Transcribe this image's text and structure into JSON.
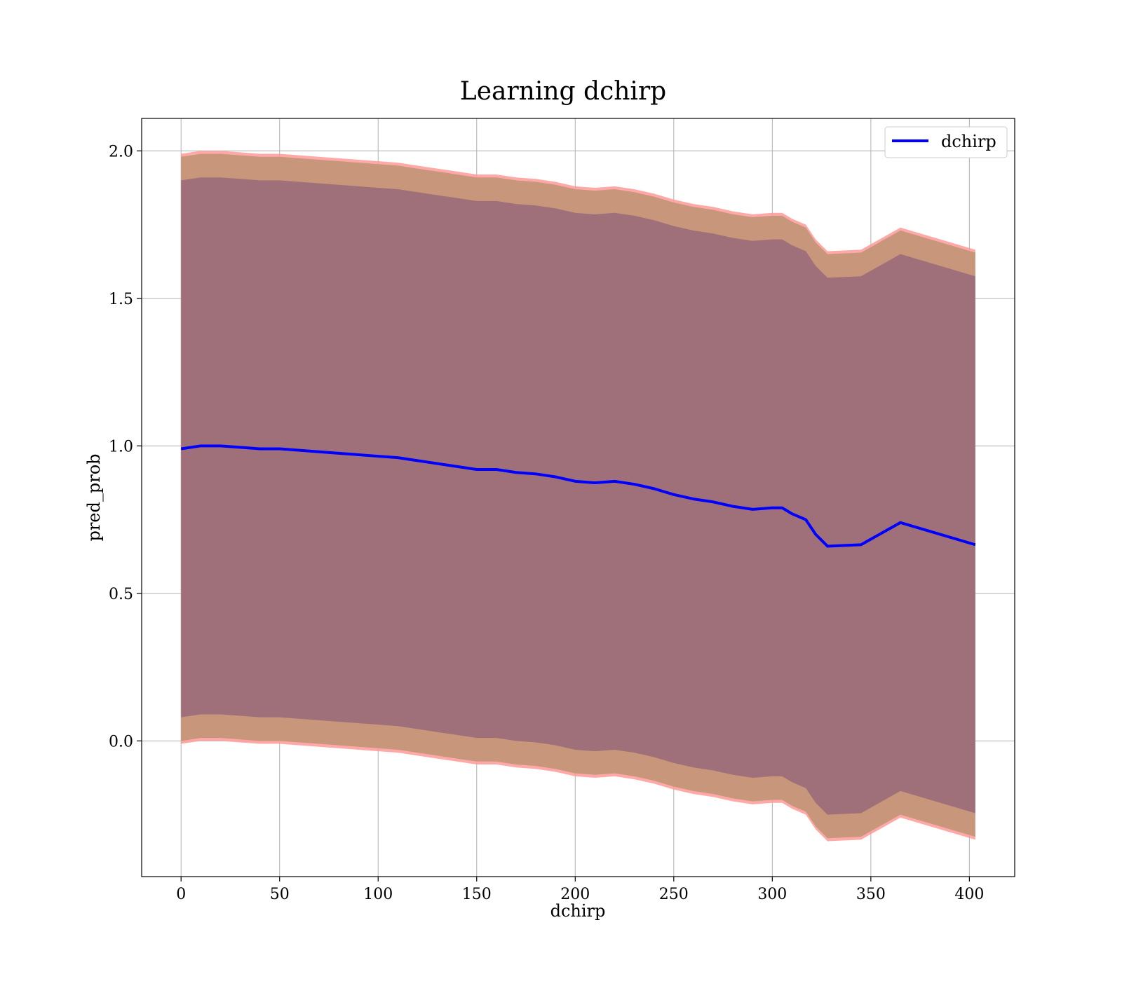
{
  "chart_data": {
    "type": "line",
    "title": "Learning dchirp",
    "xlabel": "dchirp",
    "ylabel": "pred_prob",
    "xlim": [
      -20,
      423
    ],
    "ylim": [
      -0.46,
      2.11
    ],
    "xticks": [
      0,
      50,
      100,
      150,
      200,
      250,
      300,
      350,
      400
    ],
    "xtick_labels": [
      "0",
      "50",
      "100",
      "150",
      "200",
      "250",
      "300",
      "350",
      "400"
    ],
    "yticks": [
      0.0,
      0.5,
      1.0,
      1.5,
      2.0
    ],
    "ytick_labels": [
      "0.0",
      "0.5",
      "1.0",
      "1.5",
      "2.0"
    ],
    "grid": true,
    "legend": {
      "position": "top-right",
      "entries": [
        "dchirp"
      ]
    },
    "colors": {
      "line": "#0000ff",
      "outer_band": "#ff9999",
      "mid_band": "#c8967a",
      "inner_band": "#a0707a"
    },
    "x": [
      0,
      10,
      20,
      30,
      40,
      50,
      60,
      70,
      80,
      90,
      100,
      110,
      120,
      130,
      140,
      150,
      160,
      170,
      180,
      190,
      200,
      210,
      220,
      230,
      240,
      250,
      260,
      270,
      280,
      290,
      300,
      305,
      310,
      317,
      322,
      328,
      345,
      365,
      403
    ],
    "series": [
      {
        "name": "dchirp",
        "values": [
          0.99,
          1.0,
          1.0,
          0.995,
          0.99,
          0.99,
          0.985,
          0.98,
          0.975,
          0.97,
          0.965,
          0.96,
          0.95,
          0.94,
          0.93,
          0.92,
          0.92,
          0.91,
          0.905,
          0.895,
          0.88,
          0.875,
          0.88,
          0.87,
          0.855,
          0.835,
          0.82,
          0.81,
          0.795,
          0.785,
          0.79,
          0.79,
          0.77,
          0.75,
          0.7,
          0.66,
          0.665,
          0.74,
          0.665
        ]
      }
    ],
    "bands": [
      {
        "upper": [
          1.99,
          2.0,
          2.0,
          1.995,
          1.99,
          1.99,
          1.985,
          1.98,
          1.975,
          1.97,
          1.965,
          1.96,
          1.95,
          1.94,
          1.93,
          1.92,
          1.92,
          1.91,
          1.905,
          1.895,
          1.88,
          1.875,
          1.88,
          1.87,
          1.855,
          1.835,
          1.82,
          1.81,
          1.795,
          1.785,
          1.79,
          1.79,
          1.77,
          1.75,
          1.7,
          1.66,
          1.665,
          1.74,
          1.665
        ],
        "lower": [
          -0.01,
          0.0,
          0.0,
          -0.005,
          -0.01,
          -0.01,
          -0.015,
          -0.02,
          -0.025,
          -0.03,
          -0.035,
          -0.04,
          -0.05,
          -0.06,
          -0.07,
          -0.08,
          -0.08,
          -0.09,
          -0.095,
          -0.105,
          -0.12,
          -0.125,
          -0.12,
          -0.13,
          -0.145,
          -0.165,
          -0.18,
          -0.19,
          -0.205,
          -0.215,
          -0.21,
          -0.21,
          -0.23,
          -0.25,
          -0.3,
          -0.34,
          -0.335,
          -0.26,
          -0.335
        ]
      },
      {
        "upper": [
          1.98,
          1.99,
          1.99,
          1.985,
          1.98,
          1.98,
          1.975,
          1.97,
          1.965,
          1.96,
          1.955,
          1.95,
          1.94,
          1.93,
          1.92,
          1.91,
          1.91,
          1.9,
          1.895,
          1.885,
          1.87,
          1.865,
          1.87,
          1.86,
          1.845,
          1.825,
          1.81,
          1.8,
          1.785,
          1.775,
          1.78,
          1.78,
          1.76,
          1.74,
          1.69,
          1.65,
          1.655,
          1.73,
          1.655
        ],
        "lower": [
          0.0,
          0.01,
          0.01,
          0.005,
          0.0,
          0.0,
          -0.005,
          -0.01,
          -0.015,
          -0.02,
          -0.025,
          -0.03,
          -0.04,
          -0.05,
          -0.06,
          -0.07,
          -0.07,
          -0.08,
          -0.085,
          -0.095,
          -0.11,
          -0.115,
          -0.11,
          -0.12,
          -0.135,
          -0.155,
          -0.17,
          -0.18,
          -0.195,
          -0.205,
          -0.2,
          -0.2,
          -0.22,
          -0.24,
          -0.29,
          -0.33,
          -0.325,
          -0.25,
          -0.325
        ]
      },
      {
        "upper": [
          1.9,
          1.91,
          1.91,
          1.905,
          1.9,
          1.9,
          1.895,
          1.89,
          1.885,
          1.88,
          1.875,
          1.87,
          1.86,
          1.85,
          1.84,
          1.83,
          1.83,
          1.82,
          1.815,
          1.805,
          1.79,
          1.785,
          1.79,
          1.78,
          1.765,
          1.745,
          1.73,
          1.72,
          1.705,
          1.695,
          1.7,
          1.7,
          1.68,
          1.66,
          1.61,
          1.57,
          1.575,
          1.65,
          1.575
        ],
        "lower": [
          0.08,
          0.09,
          0.09,
          0.085,
          0.08,
          0.08,
          0.075,
          0.07,
          0.065,
          0.06,
          0.055,
          0.05,
          0.04,
          0.03,
          0.02,
          0.01,
          0.01,
          0.0,
          -0.005,
          -0.015,
          -0.03,
          -0.035,
          -0.03,
          -0.04,
          -0.055,
          -0.075,
          -0.09,
          -0.1,
          -0.115,
          -0.125,
          -0.12,
          -0.12,
          -0.14,
          -0.16,
          -0.21,
          -0.25,
          -0.245,
          -0.17,
          -0.245
        ]
      }
    ]
  }
}
